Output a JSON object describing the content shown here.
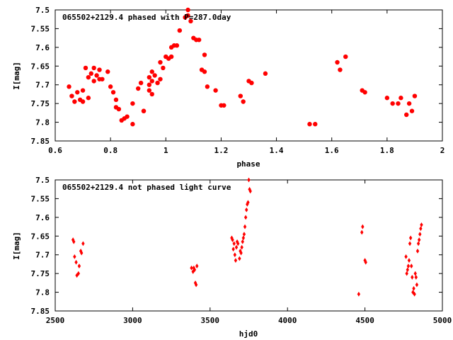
{
  "chart_data": [
    {
      "type": "scatter",
      "title": "065502+2129.4 phased with P=287.0day",
      "xlabel": "phase",
      "ylabel": "I[mag]",
      "xlim": [
        0.6,
        2.0
      ],
      "ylim": [
        7.5,
        7.85
      ],
      "y_inverted": true,
      "grid": false,
      "color": "#ff0000",
      "marker": "filled-circle",
      "xticks": [
        0.6,
        0.8,
        1.0,
        1.2,
        1.4,
        1.6,
        1.8,
        2.0
      ],
      "xtick_labels": [
        "0.6",
        "0.8",
        "1",
        "1.2",
        "1.4",
        "1.6",
        "1.8",
        "2"
      ],
      "yticks": [
        7.5,
        7.55,
        7.6,
        7.65,
        7.7,
        7.75,
        7.8,
        7.85
      ],
      "ytick_labels": [
        "7.5",
        "7.55",
        "7.6",
        "7.65",
        "7.7",
        "7.75",
        "7.8",
        "7.85"
      ],
      "x": [
        0.65,
        0.66,
        0.67,
        0.68,
        0.69,
        0.7,
        0.7,
        0.71,
        0.72,
        0.72,
        0.73,
        0.74,
        0.74,
        0.75,
        0.76,
        0.76,
        0.77,
        0.79,
        0.8,
        0.81,
        0.82,
        0.82,
        0.83,
        0.84,
        0.85,
        0.86,
        0.88,
        0.88,
        0.9,
        0.91,
        0.92,
        0.92,
        0.94,
        0.94,
        0.94,
        0.95,
        0.95,
        0.95,
        0.96,
        0.97,
        0.98,
        0.98,
        0.99,
        1.0,
        1.01,
        1.02,
        1.02,
        1.03,
        1.04,
        1.05,
        1.07,
        1.08,
        1.08,
        1.09,
        1.1,
        1.11,
        1.12,
        1.13,
        1.14,
        1.14,
        1.15,
        1.18,
        1.2,
        1.21,
        1.27,
        1.28,
        1.3,
        1.31,
        1.36,
        1.52,
        1.54,
        1.62,
        1.63,
        1.65,
        1.71,
        1.72,
        1.8,
        1.82,
        1.84,
        1.85,
        1.87,
        1.88,
        1.89,
        1.9
      ],
      "y": [
        7.705,
        7.73,
        7.745,
        7.72,
        7.74,
        7.745,
        7.715,
        7.655,
        7.735,
        7.68,
        7.67,
        7.655,
        7.69,
        7.675,
        7.66,
        7.685,
        7.685,
        7.665,
        7.705,
        7.72,
        7.74,
        7.76,
        7.765,
        7.795,
        7.79,
        7.785,
        7.805,
        7.75,
        7.71,
        7.695,
        7.77,
        7.77,
        7.68,
        7.7,
        7.715,
        7.665,
        7.69,
        7.725,
        7.675,
        7.695,
        7.64,
        7.685,
        7.655,
        7.625,
        7.63,
        7.6,
        7.625,
        7.595,
        7.595,
        7.555,
        7.52,
        7.515,
        7.5,
        7.53,
        7.575,
        7.58,
        7.58,
        7.66,
        7.62,
        7.665,
        7.705,
        7.715,
        7.755,
        7.755,
        7.73,
        7.745,
        7.69,
        7.695,
        7.67,
        7.805,
        7.805,
        7.64,
        7.66,
        7.625,
        7.715,
        7.72,
        7.735,
        7.75,
        7.75,
        7.735,
        7.78,
        7.75,
        7.77,
        7.73
      ]
    },
    {
      "type": "scatter",
      "title": "065502+2129.4 not phased light curve",
      "xlabel": "hjd0",
      "ylabel": "I[mag]",
      "xlim": [
        2500,
        5000
      ],
      "ylim": [
        7.5,
        7.85
      ],
      "y_inverted": true,
      "grid": false,
      "color": "#ff0000",
      "marker": "filled-diamond",
      "xticks": [
        2500,
        3000,
        3500,
        4000,
        4500,
        5000
      ],
      "xtick_labels": [
        "2500",
        "3000",
        "3500",
        "4000",
        "4500",
        "5000"
      ],
      "yticks": [
        7.5,
        7.55,
        7.6,
        7.65,
        7.7,
        7.75,
        7.8,
        7.85
      ],
      "ytick_labels": [
        "7.5",
        "7.55",
        "7.6",
        "7.65",
        "7.7",
        "7.75",
        "7.8",
        "7.85"
      ],
      "x": [
        2615,
        2620,
        2625,
        2635,
        2640,
        2650,
        2655,
        2665,
        2670,
        2680,
        3380,
        3390,
        3395,
        3400,
        3405,
        3410,
        3415,
        3640,
        3645,
        3650,
        3655,
        3660,
        3665,
        3670,
        3675,
        3680,
        3690,
        3695,
        3700,
        3705,
        3710,
        3715,
        3720,
        3725,
        3730,
        3735,
        3740,
        3745,
        3750,
        3755,
        3760,
        4460,
        4480,
        4485,
        4500,
        4505,
        4765,
        4770,
        4775,
        4780,
        4785,
        4790,
        4795,
        4800,
        4805,
        4810,
        4815,
        4820,
        4825,
        4830,
        4835,
        4840,
        4845,
        4850,
        4855,
        4860,
        4865
      ],
      "y": [
        7.66,
        7.665,
        7.705,
        7.72,
        7.755,
        7.75,
        7.73,
        7.69,
        7.695,
        7.67,
        7.735,
        7.745,
        7.735,
        7.74,
        7.775,
        7.78,
        7.73,
        7.655,
        7.66,
        7.685,
        7.67,
        7.7,
        7.715,
        7.68,
        7.665,
        7.67,
        7.71,
        7.69,
        7.695,
        7.68,
        7.665,
        7.655,
        7.645,
        7.625,
        7.6,
        7.58,
        7.565,
        7.56,
        7.5,
        7.525,
        7.53,
        7.805,
        7.64,
        7.625,
        7.715,
        7.72,
        7.705,
        7.75,
        7.74,
        7.73,
        7.715,
        7.67,
        7.655,
        7.73,
        7.76,
        7.8,
        7.79,
        7.805,
        7.75,
        7.76,
        7.78,
        7.69,
        7.67,
        7.66,
        7.645,
        7.63,
        7.62
      ]
    }
  ]
}
